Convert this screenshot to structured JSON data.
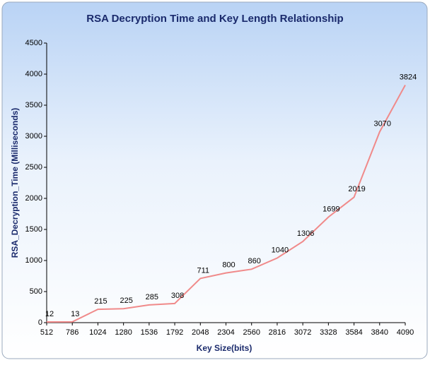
{
  "chart_data": {
    "type": "line",
    "title": "RSA Decryption Time and  Key Length Relationship",
    "x_label": "Key Size(bits)",
    "y_label": "RSA_Decryption_Time (Milliseconds)",
    "categories": [
      "512",
      "786",
      "1024",
      "1280",
      "1536",
      "1792",
      "2048",
      "2304",
      "2560",
      "2816",
      "3072",
      "3328",
      "3584",
      "3840",
      "4090"
    ],
    "series": [
      {
        "name": "RSA_Decryption_Time",
        "color": "#f08a8a",
        "values": [
          12,
          13,
          215,
          225,
          285,
          308,
          711,
          800,
          860,
          1040,
          1306,
          1699,
          2019,
          3070,
          3824
        ]
      }
    ],
    "ylim": [
      0,
      4500
    ],
    "yticks": [
      0,
      500,
      1000,
      1500,
      2000,
      2500,
      3000,
      3500,
      4000,
      4500
    ],
    "grid": false
  }
}
